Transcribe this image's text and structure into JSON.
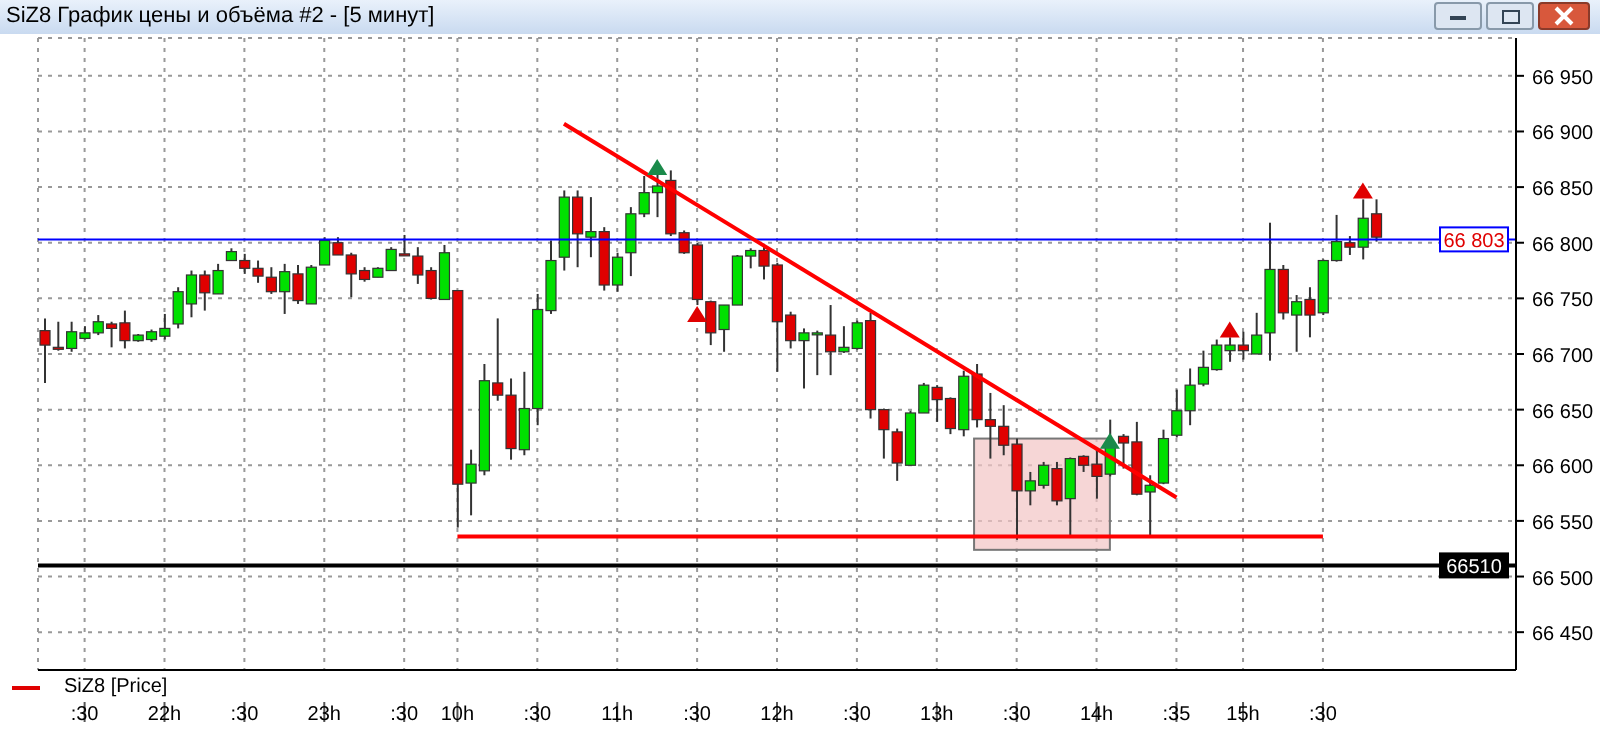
{
  "chart_data": {
    "type": "candlestick",
    "title": "SiZ8 График цены и объёма #2 - [5 минут]",
    "categories": [
      null,
      null,
      null,
      ":30",
      null,
      null,
      null,
      null,
      null,
      "22h",
      null,
      null,
      null,
      null,
      null,
      ":30",
      null,
      null,
      null,
      null,
      null,
      "23h",
      null,
      null,
      null,
      null,
      null,
      ":30",
      null,
      null,
      null,
      "10h",
      null,
      null,
      null,
      null,
      null,
      ":30",
      null,
      null,
      null,
      null,
      null,
      "11h",
      null,
      null,
      null,
      null,
      null,
      ":30",
      null,
      null,
      null,
      null,
      null,
      "12h",
      null,
      null,
      null,
      null,
      null,
      ":30",
      null,
      null,
      null,
      null,
      null,
      "13h",
      null,
      null,
      null,
      null,
      null,
      ":30",
      null,
      null,
      null,
      null,
      null,
      "14h",
      null,
      null,
      null,
      null,
      null,
      ":35",
      null,
      null,
      null,
      null,
      "15h",
      null,
      null,
      null,
      null,
      null,
      ":30",
      null,
      null,
      null,
      null,
      null,
      null,
      null,
      null,
      null,
      null,
      null,
      null,
      null,
      null
    ],
    "ylim": [
      66416,
      66984
    ],
    "yticks": [
      {
        "value": 66450,
        "label": "66 450"
      },
      {
        "value": 66500,
        "label": "66 500"
      },
      {
        "value": 66550,
        "label": "66 550"
      },
      {
        "value": 66600,
        "label": "66 600"
      },
      {
        "value": 66650,
        "label": "66 650"
      },
      {
        "value": 66700,
        "label": "66 700"
      },
      {
        "value": 66750,
        "label": "66 750"
      },
      {
        "value": 66800,
        "label": "66 800"
      },
      {
        "value": 66850,
        "label": "66 850"
      },
      {
        "value": 66900,
        "label": "66 900"
      },
      {
        "value": 66950,
        "label": "66 950"
      }
    ],
    "grid": true,
    "legend": "bottom left",
    "ref_lines": [
      {
        "axis": "y",
        "value": 66803,
        "label": "66 803",
        "color": "#0000ff"
      },
      {
        "axis": "y",
        "value": 66510,
        "label": "66510",
        "color": "#000000"
      }
    ],
    "series": [
      {
        "name": "SiZ8 [Price]",
        "color": "#e00000",
        "ohlc": [
          [
            66721,
            66732,
            66674,
            66708
          ],
          [
            66706,
            66729,
            66703,
            66705
          ],
          [
            66705,
            66729,
            66702,
            66720
          ],
          [
            66714,
            66725,
            66713,
            66719
          ],
          [
            66719,
            66735,
            66717,
            66729
          ],
          [
            66727,
            66729,
            66706,
            66723
          ],
          [
            66728,
            66739,
            66705,
            66712
          ],
          [
            66712,
            66718,
            66711,
            66717
          ],
          [
            66713,
            66722,
            66711,
            66720
          ],
          [
            66716,
            66736,
            66713,
            66723
          ],
          [
            66727,
            66760,
            66723,
            66756
          ],
          [
            66745,
            66775,
            66733,
            66771
          ],
          [
            66771,
            66775,
            66739,
            66755
          ],
          [
            66754,
            66781,
            66754,
            66775
          ],
          [
            66784,
            66795,
            66784,
            66792
          ],
          [
            66784,
            66790,
            66772,
            66777
          ],
          [
            66777,
            66784,
            66764,
            66770
          ],
          [
            66769,
            66778,
            66754,
            66756
          ],
          [
            66756,
            66781,
            66736,
            66774
          ],
          [
            66772,
            66780,
            66745,
            66748
          ],
          [
            66745,
            66780,
            66745,
            66778
          ],
          [
            66780,
            66805,
            66780,
            66802
          ],
          [
            66800,
            66805,
            66789,
            66789
          ],
          [
            66789,
            66791,
            66751,
            66772
          ],
          [
            66775,
            66778,
            66765,
            66767
          ],
          [
            66769,
            66778,
            66769,
            66777
          ],
          [
            66775,
            66796,
            66775,
            66794
          ],
          [
            66790,
            66807,
            66789,
            66789
          ],
          [
            66788,
            66796,
            66763,
            66771
          ],
          [
            66775,
            66778,
            66749,
            66750
          ],
          [
            66749,
            66798,
            66749,
            66791
          ],
          [
            66757,
            66757,
            66544,
            66583
          ],
          [
            66584,
            66614,
            66555,
            66601
          ],
          [
            66595,
            66691,
            66591,
            66676
          ],
          [
            66674,
            66732,
            66658,
            66663
          ],
          [
            66663,
            66678,
            66605,
            66615
          ],
          [
            66614,
            66684,
            66609,
            66651
          ],
          [
            66651,
            66754,
            66636,
            66740
          ],
          [
            66739,
            66802,
            66736,
            66784
          ],
          [
            66787,
            66847,
            66775,
            66841
          ],
          [
            66841,
            66847,
            66778,
            66808
          ],
          [
            66805,
            66841,
            66787,
            66810
          ],
          [
            66810,
            66814,
            66757,
            66762
          ],
          [
            66762,
            66791,
            66756,
            66787
          ],
          [
            66791,
            66832,
            66770,
            66826
          ],
          [
            66826,
            66860,
            66823,
            66845
          ],
          [
            66845,
            66862,
            66823,
            66851
          ],
          [
            66856,
            66865,
            66806,
            66808
          ],
          [
            66809,
            66811,
            66790,
            66791
          ],
          [
            66798,
            66800,
            66744,
            66749
          ],
          [
            66747,
            66748,
            66708,
            66719
          ],
          [
            66722,
            66744,
            66702,
            66744
          ],
          [
            66744,
            66789,
            66744,
            66788
          ],
          [
            66788,
            66795,
            66777,
            66793
          ],
          [
            66793,
            66799,
            66767,
            66779
          ],
          [
            66780,
            66782,
            66684,
            66729
          ],
          [
            66735,
            66738,
            66705,
            66712
          ],
          [
            66712,
            66723,
            66669,
            66719
          ],
          [
            66718,
            66721,
            66681,
            66719
          ],
          [
            66717,
            66744,
            66681,
            66702
          ],
          [
            66702,
            66725,
            66701,
            66706
          ],
          [
            66705,
            66730,
            66704,
            66728
          ],
          [
            66730,
            66737,
            66642,
            66650
          ],
          [
            66650,
            66651,
            66606,
            66632
          ],
          [
            66630,
            66633,
            66586,
            66602
          ],
          [
            66600,
            66649,
            66600,
            66647
          ],
          [
            66647,
            66674,
            66647,
            66672
          ],
          [
            66670,
            66672,
            66639,
            66659
          ],
          [
            66660,
            66661,
            66628,
            66633
          ],
          [
            66632,
            66685,
            66626,
            66680
          ],
          [
            66682,
            66691,
            66634,
            66641
          ],
          [
            66641,
            66665,
            66606,
            66635
          ],
          [
            66635,
            66654,
            66609,
            66618
          ],
          [
            66619,
            66624,
            66533,
            66577
          ],
          [
            66577,
            66594,
            66564,
            66586
          ],
          [
            66582,
            66603,
            66579,
            66600
          ],
          [
            66597,
            66603,
            66564,
            66568
          ],
          [
            66570,
            66607,
            66537,
            66606
          ],
          [
            66608,
            66609,
            66594,
            66600
          ],
          [
            66601,
            66615,
            66570,
            66590
          ],
          [
            66592,
            66641,
            66590,
            66619
          ],
          [
            66626,
            66628,
            66597,
            66620
          ],
          [
            66621,
            66639,
            66573,
            66574
          ],
          [
            66576,
            66591,
            66537,
            66582
          ],
          [
            66584,
            66632,
            66583,
            66624
          ],
          [
            66627,
            66668,
            66625,
            66649
          ],
          [
            66649,
            66687,
            66636,
            66672
          ],
          [
            66673,
            66703,
            66671,
            66688
          ],
          [
            66686,
            66713,
            66685,
            66708
          ],
          [
            66703,
            66715,
            66693,
            66708
          ],
          [
            66708,
            66720,
            66695,
            66703
          ],
          [
            66700,
            66737,
            66700,
            66717
          ],
          [
            66719,
            66818,
            66694,
            66776
          ],
          [
            66776,
            66780,
            66731,
            66737
          ],
          [
            66735,
            66753,
            66702,
            66747
          ],
          [
            66749,
            66760,
            66715,
            66735
          ],
          [
            66737,
            66785,
            66735,
            66784
          ],
          [
            66784,
            66825,
            66783,
            66801
          ],
          [
            66800,
            66806,
            66789,
            66796
          ],
          [
            66796,
            66839,
            66785,
            66822
          ],
          [
            66826,
            66839,
            66801,
            66805
          ],
          null,
          null,
          null,
          null,
          null,
          null,
          null,
          null,
          null,
          null
        ],
        "colors": [
          "#e00000",
          "#e00000",
          "#00e000",
          "#00e000",
          "#00e000",
          "#e00000",
          "#e00000",
          "#00e000",
          "#00e000",
          "#00e000",
          "#00e000",
          "#00e000",
          "#e00000",
          "#00e000",
          "#00e000",
          "#e00000",
          "#e00000",
          "#e00000",
          "#00e000",
          "#e00000",
          "#00e000",
          "#00e000",
          "#e00000",
          "#e00000",
          "#e00000",
          "#00e000",
          "#00e000",
          "#e00000",
          "#e00000",
          "#e00000",
          "#00e000",
          "#e00000",
          "#00e000",
          "#00e000",
          "#e00000",
          "#e00000",
          "#00e000",
          "#00e000",
          "#00e000",
          "#00e000",
          "#e00000",
          "#00e000",
          "#e00000",
          "#00e000",
          "#00e000",
          "#00e000",
          "#00e000",
          "#e00000",
          "#e00000",
          "#e00000",
          "#e00000",
          "#00e000",
          "#00e000",
          "#00e000",
          "#e00000",
          "#e00000",
          "#e00000",
          "#00e000",
          "#00e000",
          "#e00000",
          "#00e000",
          "#00e000",
          "#e00000",
          "#e00000",
          "#e00000",
          "#00e000",
          "#00e000",
          "#e00000",
          "#e00000",
          "#00e000",
          "#e00000",
          "#e00000",
          "#e00000",
          "#e00000",
          "#00e000",
          "#00e000",
          "#e00000",
          "#00e000",
          "#e00000",
          "#e00000",
          "#00e000",
          "#e00000",
          "#e00000",
          "#00e000",
          "#00e000",
          "#00e000",
          "#00e000",
          "#00e000",
          "#00e000",
          "#00e000",
          "#e00000",
          "#00e000",
          "#00e000",
          "#e00000",
          "#00e000",
          "#e00000",
          "#00e000",
          "#00e000",
          "#e00000",
          "#00e000",
          "#e00000",
          null,
          null,
          null,
          null,
          null,
          null,
          null,
          null,
          null,
          null
        ]
      },
      {
        "type": "line",
        "color": "#ff0000",
        "values": [
          null,
          null,
          null,
          null,
          null,
          null,
          null,
          null,
          null,
          null,
          null,
          null,
          null,
          null,
          null,
          null,
          null,
          null,
          null,
          null,
          null,
          null,
          null,
          null,
          null,
          null,
          null,
          null,
          null,
          null,
          null,
          null,
          null,
          null,
          null,
          null,
          null,
          null,
          null,
          66907,
          null,
          null,
          null,
          null,
          null,
          null,
          null,
          null,
          null,
          null,
          null,
          null,
          null,
          null,
          null,
          null,
          null,
          null,
          null,
          null,
          null,
          null,
          null,
          null,
          null,
          null,
          null,
          null,
          null,
          null,
          null,
          null,
          null,
          null,
          null,
          null,
          null,
          null,
          null,
          null,
          null,
          null,
          null,
          null,
          null,
          66571,
          null,
          null,
          null,
          null,
          null,
          null,
          null,
          null,
          null,
          null,
          null,
          null,
          null,
          null,
          null,
          null,
          null,
          null,
          null,
          null,
          null,
          null,
          null,
          null,
          null
        ]
      },
      {
        "type": "line",
        "color": "#ff0000",
        "values": [
          null,
          null,
          null,
          null,
          null,
          null,
          null,
          null,
          null,
          null,
          null,
          null,
          null,
          null,
          null,
          null,
          null,
          null,
          null,
          null,
          null,
          null,
          null,
          null,
          null,
          null,
          null,
          null,
          null,
          null,
          null,
          66536,
          null,
          null,
          null,
          null,
          null,
          null,
          null,
          null,
          null,
          null,
          null,
          null,
          null,
          null,
          null,
          null,
          null,
          null,
          null,
          null,
          null,
          null,
          null,
          null,
          null,
          null,
          null,
          null,
          null,
          null,
          null,
          null,
          null,
          null,
          null,
          null,
          null,
          null,
          null,
          null,
          null,
          null,
          null,
          null,
          null,
          null,
          null,
          null,
          null,
          null,
          null,
          null,
          null,
          null,
          null,
          null,
          null,
          null,
          null,
          null,
          null,
          null,
          null,
          null,
          66536,
          null,
          null,
          null,
          null,
          null,
          null,
          null,
          null,
          null,
          null,
          null,
          null,
          null,
          null
        ]
      },
      {
        "type": "scatter",
        "marker": "triangle",
        "color": "#1a8a4a",
        "values": [
          null,
          null,
          null,
          null,
          null,
          null,
          null,
          null,
          null,
          null,
          null,
          null,
          null,
          null,
          null,
          null,
          null,
          null,
          null,
          null,
          null,
          null,
          null,
          null,
          null,
          null,
          null,
          null,
          null,
          null,
          null,
          null,
          null,
          null,
          null,
          null,
          null,
          null,
          null,
          null,
          null,
          null,
          null,
          null,
          null,
          null,
          66868,
          null,
          null,
          null,
          null,
          null,
          null,
          null,
          null,
          null,
          null,
          null,
          null,
          null,
          null,
          null,
          null,
          null,
          null,
          null,
          null,
          null,
          null,
          null,
          null,
          null,
          null,
          null,
          null,
          null,
          null,
          null,
          null,
          null,
          66622,
          null,
          null,
          null,
          null,
          null,
          null,
          null,
          null,
          null,
          null,
          null,
          null,
          null,
          null,
          null,
          null,
          null,
          null,
          null,
          null,
          null,
          null,
          null,
          null,
          null,
          null,
          null,
          null,
          null,
          null
        ]
      },
      {
        "type": "scatter",
        "marker": "triangle",
        "color": "#e00000",
        "values": [
          null,
          null,
          null,
          null,
          null,
          null,
          null,
          null,
          null,
          null,
          null,
          null,
          null,
          null,
          null,
          null,
          null,
          null,
          null,
          null,
          null,
          null,
          null,
          null,
          null,
          null,
          null,
          null,
          null,
          null,
          null,
          null,
          null,
          null,
          null,
          null,
          null,
          null,
          null,
          null,
          null,
          null,
          null,
          null,
          null,
          null,
          null,
          null,
          null,
          66736,
          null,
          null,
          null,
          null,
          null,
          null,
          null,
          null,
          null,
          null,
          null,
          null,
          null,
          null,
          null,
          null,
          null,
          null,
          null,
          null,
          null,
          null,
          null,
          null,
          null,
          null,
          null,
          null,
          null,
          null,
          null,
          null,
          null,
          null,
          null,
          null,
          null,
          null,
          null,
          66722,
          null,
          null,
          null,
          null,
          null,
          null,
          null,
          null,
          null,
          66847,
          null,
          null,
          null,
          null,
          null,
          null,
          null,
          null,
          null,
          null,
          null
        ]
      }
    ]
  }
}
